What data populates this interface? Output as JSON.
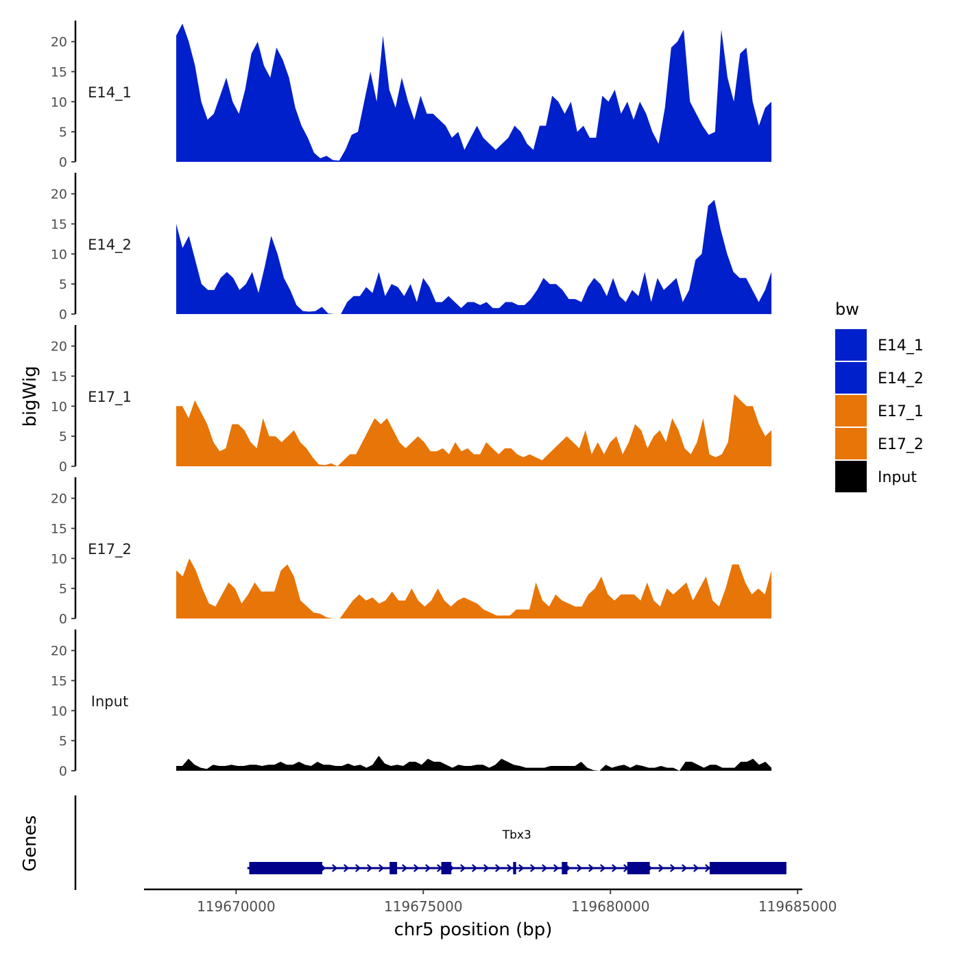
{
  "chart_data": {
    "type": "area",
    "chromosome": "chr5",
    "xlabel": "chr5 position (bp)",
    "ylabel": "bigWig",
    "genes_label": "Genes",
    "xlim": [
      119666800,
      119685200
    ],
    "x_ticks": [
      119670000,
      119675000,
      119680000,
      119685000
    ],
    "x_tick_labels": [
      "119670000",
      "119675000",
      "119680000",
      "119685000"
    ],
    "ylim": [
      0,
      23.5
    ],
    "y_ticks": [
      0,
      5,
      10,
      15,
      20
    ],
    "y_tick_labels": [
      "0",
      "5",
      "10",
      "15",
      "20"
    ],
    "track_start": 119668400,
    "track_end": 119684300,
    "legend": {
      "title": "bw",
      "position": "right",
      "entries": [
        {
          "label": "E14_1",
          "color": "#0020CC"
        },
        {
          "label": "E14_2",
          "color": "#0020CC"
        },
        {
          "label": "E17_1",
          "color": "#E87507"
        },
        {
          "label": "E17_2",
          "color": "#E87507"
        },
        {
          "label": "Input",
          "color": "#000000"
        }
      ]
    },
    "series": [
      {
        "name": "E14_1",
        "color": "#0020CC",
        "values": [
          21,
          23,
          20,
          16,
          10,
          7,
          8,
          11,
          14,
          10,
          8,
          12,
          18,
          20,
          16,
          14,
          19,
          17,
          14,
          9,
          6,
          4,
          1.5,
          0.6,
          1,
          0.3,
          0.2,
          2,
          4.5,
          5,
          10,
          15,
          10,
          21,
          12,
          9,
          14,
          10,
          7,
          11,
          8,
          8,
          7,
          6,
          4,
          5,
          2,
          4,
          6,
          4,
          3,
          2,
          3,
          4,
          6,
          5,
          3,
          2,
          6,
          6,
          11,
          10,
          8,
          10,
          5,
          6,
          4,
          4,
          11,
          10,
          12,
          8,
          10,
          7,
          10,
          8,
          5,
          3,
          9,
          19,
          20,
          22,
          10,
          8,
          6,
          4.5,
          5,
          22,
          14,
          10,
          18,
          19,
          10,
          6,
          9,
          10
        ]
      },
      {
        "name": "E14_2",
        "color": "#0020CC",
        "values": [
          15,
          11,
          13,
          9,
          5,
          4,
          4,
          6,
          7,
          6,
          4,
          5,
          7,
          3.5,
          8,
          13,
          10,
          6,
          4,
          1.5,
          0.5,
          0.4,
          0.5,
          1.2,
          0.1,
          0,
          0,
          2,
          3,
          3,
          4.5,
          3.5,
          7,
          3,
          5,
          4.5,
          3,
          5,
          2,
          6,
          4.5,
          2,
          2,
          3,
          2,
          1,
          2,
          2,
          1.5,
          2,
          1,
          1,
          2,
          2,
          1.5,
          1.5,
          2.5,
          4,
          6,
          5,
          5,
          4,
          2.5,
          2.5,
          2,
          4.5,
          6,
          5,
          3,
          6,
          3,
          2,
          4,
          3,
          7,
          2,
          6,
          4,
          5,
          6,
          2,
          4,
          9,
          10,
          18,
          19,
          14,
          10,
          7,
          6,
          6,
          4,
          2,
          4,
          7
        ]
      },
      {
        "name": "E17_1",
        "color": "#E87507",
        "values": [
          10,
          10,
          8,
          11,
          9,
          7,
          4,
          2.5,
          3,
          7,
          7,
          6,
          4,
          3,
          8,
          5,
          5,
          4,
          5,
          6,
          4,
          3,
          1.5,
          0.3,
          0.2,
          0.5,
          0,
          1,
          2,
          2,
          4,
          6,
          8,
          7,
          8,
          6,
          4,
          3,
          4,
          5,
          4,
          2.5,
          2.5,
          3,
          2,
          4,
          2.5,
          3,
          2,
          2,
          4,
          3,
          2,
          3,
          3,
          2,
          1.5,
          2,
          1.5,
          1,
          2,
          3,
          4,
          5,
          4,
          3,
          6,
          2,
          4,
          2,
          4,
          5,
          2,
          4,
          7,
          6,
          3,
          5,
          6,
          4,
          8,
          6,
          3,
          2,
          4,
          8,
          2,
          1.5,
          2,
          4,
          12,
          11,
          10,
          10,
          7,
          5,
          6
        ]
      },
      {
        "name": "E17_2",
        "color": "#E87507",
        "values": [
          8,
          7,
          10,
          8,
          5,
          2.5,
          2,
          4,
          6,
          5,
          2.5,
          4,
          6,
          4.5,
          4.5,
          4.5,
          8,
          9,
          7,
          3,
          2,
          1,
          0.8,
          0.2,
          0,
          0,
          1.5,
          3,
          4,
          3,
          3.5,
          2.5,
          3,
          4.5,
          3,
          3,
          5,
          3,
          2,
          3,
          5,
          3,
          2,
          3,
          3.5,
          3,
          2.5,
          1.5,
          1,
          0.5,
          0.5,
          0.5,
          1.5,
          1.5,
          1.5,
          6,
          3,
          2,
          4,
          3,
          2.5,
          2,
          2,
          4,
          5,
          7,
          4,
          3,
          4,
          4,
          4,
          3,
          6,
          3,
          2,
          5,
          4,
          5,
          6,
          3,
          5,
          7,
          3,
          2,
          5,
          9,
          9,
          6,
          4,
          5,
          4,
          8
        ]
      },
      {
        "name": "Input",
        "color": "#000000",
        "values": [
          0.8,
          0.8,
          2,
          1,
          0.5,
          0.3,
          1,
          0.8,
          0.8,
          1,
          0.8,
          0.8,
          1,
          1,
          0.8,
          1,
          1,
          1.5,
          1,
          1,
          1.5,
          1,
          0.8,
          1.5,
          1,
          1,
          0.8,
          0.8,
          1.2,
          0.8,
          1,
          0.5,
          1,
          2.5,
          1.2,
          0.8,
          1,
          0.8,
          1.5,
          1.5,
          1,
          2,
          1.5,
          1.5,
          1,
          0.5,
          1,
          0.8,
          0.8,
          1,
          1,
          0.5,
          1,
          2,
          1.5,
          1,
          0.8,
          0.5,
          0.5,
          0.5,
          0.5,
          0.8,
          0.8,
          0.8,
          0.8,
          0.8,
          1.5,
          0.5,
          0.1,
          0,
          1,
          0.5,
          0.8,
          1,
          0.5,
          1,
          0.8,
          0.5,
          0.5,
          0.8,
          0.5,
          0.5,
          0,
          1.5,
          1.5,
          1,
          0.5,
          1,
          1,
          0.5,
          0.5,
          0.5,
          1.5,
          1.5,
          2,
          1,
          1.5,
          0.5
        ]
      }
    ],
    "genes": [
      {
        "name": "Tbx3",
        "strand": "+",
        "start": 119670300,
        "end": 119684700,
        "exons": [
          [
            119670350,
            119672300
          ],
          [
            119674100,
            119674300
          ],
          [
            119675480,
            119675750
          ],
          [
            119677400,
            119677480
          ],
          [
            119678700,
            119678850
          ],
          [
            119680450,
            119681050
          ],
          [
            119682650,
            119684700
          ]
        ]
      }
    ]
  }
}
